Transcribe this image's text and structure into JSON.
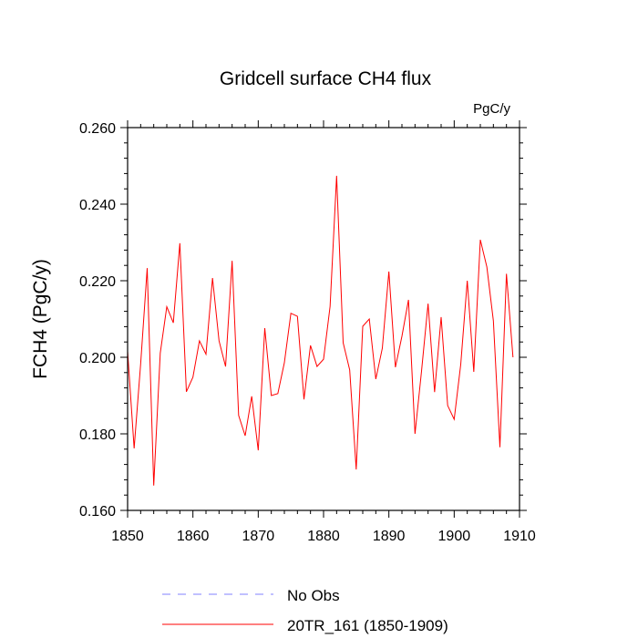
{
  "chart_data": {
    "type": "line",
    "title": "Gridcell surface CH4 flux",
    "units": "PgC/y",
    "xlabel": "",
    "ylabel": "FCH4  (PgC/y)",
    "xlim": [
      1850,
      1910
    ],
    "ylim": [
      0.16,
      0.26
    ],
    "xticks": [
      1850,
      1860,
      1870,
      1880,
      1890,
      1900,
      1910
    ],
    "yticks": [
      0.16,
      0.18,
      0.2,
      0.22,
      0.24,
      0.26
    ],
    "ytick_labels": [
      "0.160",
      "0.180",
      "0.200",
      "0.220",
      "0.240",
      "0.260"
    ],
    "grid": false,
    "legend_position": "bottom",
    "series": [
      {
        "name": "20TR_161 (1850-1909)",
        "color": "#ff0000",
        "dashed": false,
        "x": [
          1850,
          1851,
          1852,
          1853,
          1854,
          1855,
          1856,
          1857,
          1858,
          1859,
          1860,
          1861,
          1862,
          1863,
          1864,
          1865,
          1866,
          1867,
          1868,
          1869,
          1870,
          1871,
          1872,
          1873,
          1874,
          1875,
          1876,
          1877,
          1878,
          1879,
          1880,
          1881,
          1882,
          1883,
          1884,
          1885,
          1886,
          1887,
          1888,
          1889,
          1890,
          1891,
          1892,
          1893,
          1894,
          1895,
          1896,
          1897,
          1898,
          1899,
          1900,
          1901,
          1902,
          1903,
          1904,
          1905,
          1906,
          1907,
          1908,
          1909
        ],
        "values": [
          0.2016,
          0.1762,
          0.1983,
          0.2233,
          0.1665,
          0.2011,
          0.2132,
          0.209,
          0.2298,
          0.191,
          0.1948,
          0.2043,
          0.2008,
          0.2207,
          0.2043,
          0.1976,
          0.2252,
          0.1848,
          0.1795,
          0.1898,
          0.1757,
          0.2076,
          0.19,
          0.1905,
          0.1986,
          0.2115,
          0.2107,
          0.189,
          0.2031,
          0.1976,
          0.1995,
          0.2133,
          0.2474,
          0.2038,
          0.1967,
          0.1707,
          0.2081,
          0.21,
          0.1943,
          0.2024,
          0.2224,
          0.1974,
          0.2055,
          0.215,
          0.18,
          0.1964,
          0.214,
          0.1909,
          0.2105,
          0.1874,
          0.1838,
          0.1981,
          0.22,
          0.1962,
          0.2307,
          0.2236,
          0.2095,
          0.1765,
          0.2218,
          0.2
        ]
      },
      {
        "name": "No Obs",
        "color": "#8080ff",
        "dashed": true,
        "x": [],
        "values": []
      }
    ]
  }
}
